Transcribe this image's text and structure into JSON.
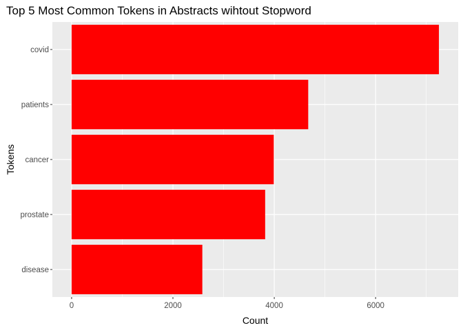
{
  "chart_data": {
    "type": "bar",
    "orientation": "horizontal",
    "title": "Top 5 Most Common Tokens in Abstracts wihtout Stopword",
    "xlabel": "Count",
    "ylabel": "Tokens",
    "categories": [
      "covid",
      "patients",
      "cancer",
      "prostate",
      "disease"
    ],
    "values": [
      7250,
      4670,
      3990,
      3820,
      2580
    ],
    "xlim": [
      -380,
      7630
    ],
    "xticks": [
      0,
      2000,
      4000,
      6000
    ],
    "grid": true,
    "legend": "none",
    "bar_color": "#FF0000",
    "panel_background": "#EBEBEB",
    "grid_color": "#FFFFFF"
  }
}
